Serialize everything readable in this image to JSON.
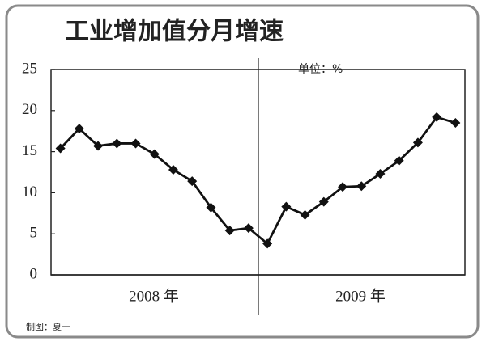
{
  "chart_data": {
    "type": "line",
    "title": "工业增加值分月增速",
    "unit_label": "单位：%",
    "credit": "制图：夏一",
    "x_group_labels": [
      "2008 年",
      "2009 年"
    ],
    "categories": [
      null,
      null,
      null,
      null,
      null,
      null,
      null,
      null,
      null,
      null,
      null,
      null,
      null,
      null,
      null,
      null,
      null,
      null,
      null,
      null,
      null,
      null
    ],
    "values": [
      15.4,
      17.8,
      15.7,
      16.0,
      16.0,
      14.7,
      12.8,
      11.4,
      8.2,
      5.4,
      5.7,
      3.8,
      8.3,
      7.3,
      8.9,
      10.7,
      10.8,
      12.3,
      13.9,
      16.1,
      19.2,
      18.5
    ],
    "color": "#111111",
    "marker": "diamond",
    "ylim": [
      0,
      25
    ],
    "yticks": [
      0,
      5,
      10,
      15,
      20,
      25
    ],
    "grid": false
  }
}
